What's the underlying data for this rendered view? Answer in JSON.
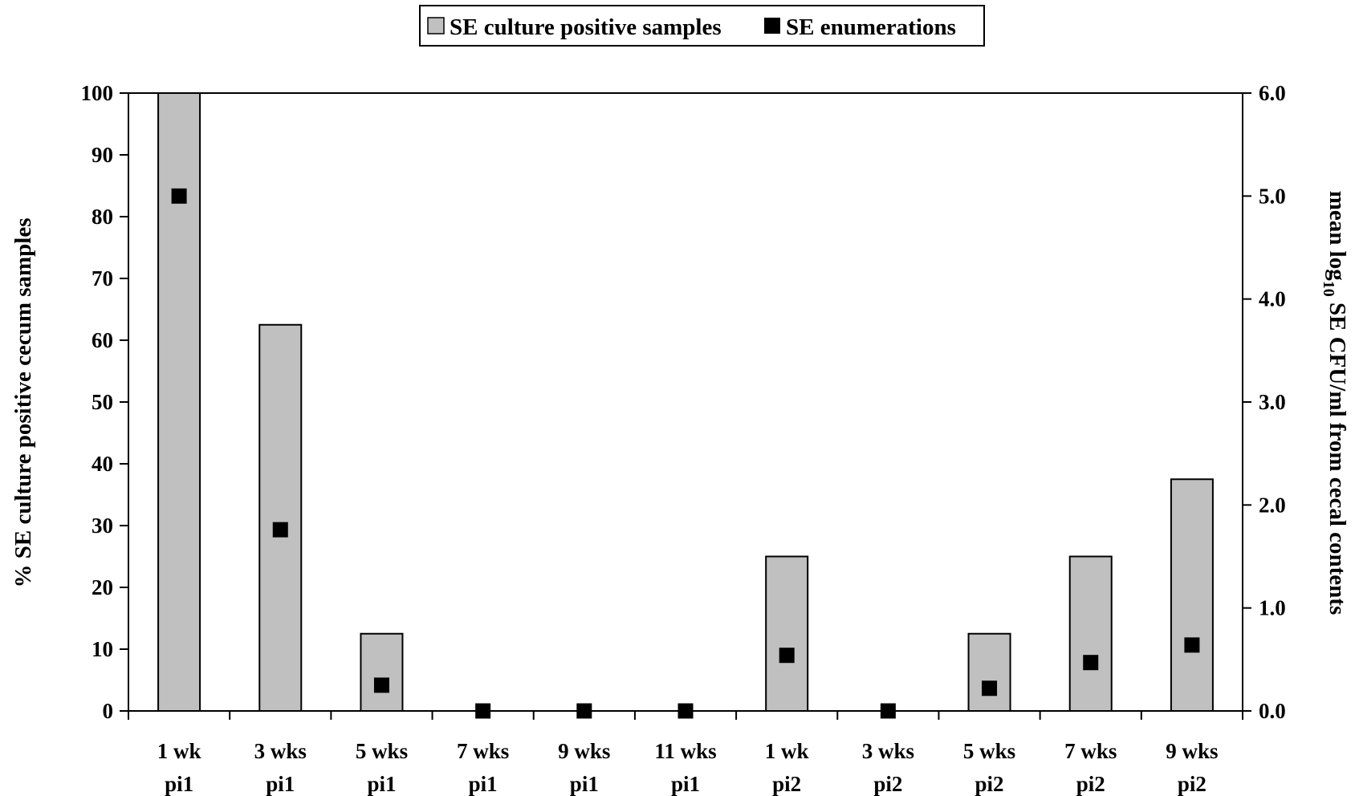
{
  "chart_data": {
    "type": "bar",
    "categories": [
      [
        "1 wk",
        "pi1"
      ],
      [
        "3 wks",
        "pi1"
      ],
      [
        "5 wks",
        "pi1"
      ],
      [
        "7 wks",
        "pi1"
      ],
      [
        "9 wks",
        "pi1"
      ],
      [
        "11 wks",
        "pi1"
      ],
      [
        "1 wk",
        "pi2"
      ],
      [
        "3 wks",
        "pi2"
      ],
      [
        "5 wks",
        "pi2"
      ],
      [
        "7 wks",
        "pi2"
      ],
      [
        "9 wks",
        "pi2"
      ]
    ],
    "series": [
      {
        "name": "SE culture positive samples",
        "kind": "bar",
        "axis": "left",
        "color": "#c0c0c0",
        "values": [
          100,
          62.5,
          12.5,
          0,
          0,
          0,
          25,
          0,
          12.5,
          25,
          37.5
        ]
      },
      {
        "name": "SE enumerations",
        "kind": "marker",
        "axis": "right",
        "color": "#000000",
        "values": [
          5.0,
          1.76,
          0.25,
          0,
          0,
          0,
          0.54,
          0,
          0.22,
          0.47,
          0.64
        ]
      }
    ],
    "y_left": {
      "label": "% SE culture positive cecum samples",
      "ylim": [
        0,
        100
      ],
      "ticks": [
        "0",
        "10",
        "20",
        "30",
        "40",
        "50",
        "60",
        "70",
        "80",
        "90",
        "100"
      ]
    },
    "y_right": {
      "label_parts": [
        "mean log",
        "10",
        " SE CFU/ml from cecal contents"
      ],
      "ylim": [
        0,
        6
      ],
      "ticks": [
        "0.0",
        "1.0",
        "2.0",
        "3.0",
        "4.0",
        "5.0",
        "6.0"
      ]
    },
    "legend_position": "top-center",
    "grid": false
  }
}
